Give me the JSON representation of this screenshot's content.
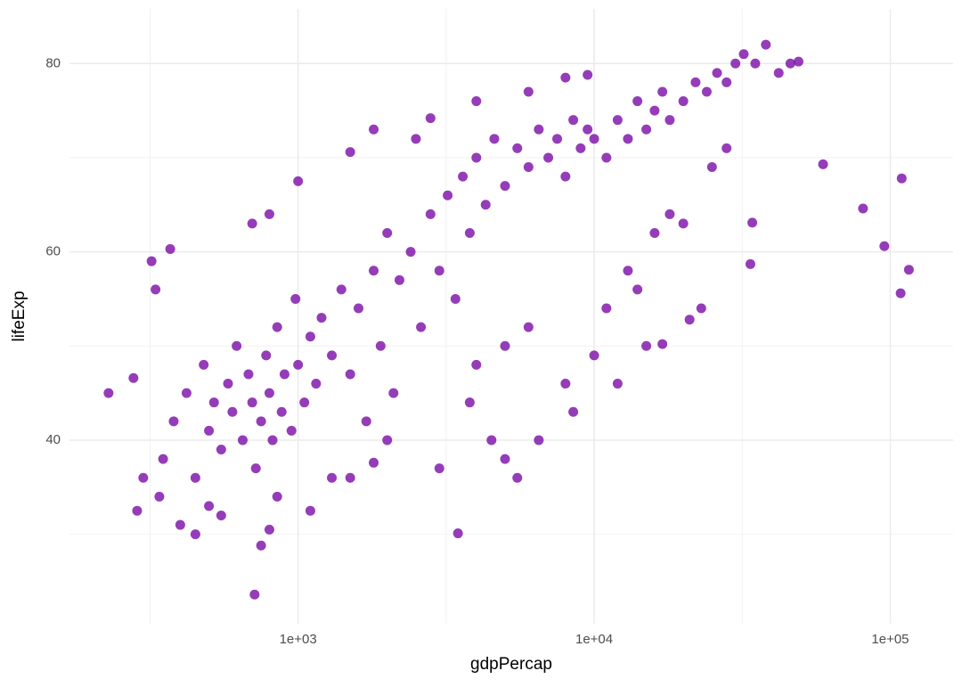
{
  "chart_data": {
    "type": "scatter",
    "x_label": "gdpPercap",
    "y_label": "lifeExp",
    "x": [
      350,
      380,
      420,
      450,
      480,
      500,
      520,
      550,
      580,
      600,
      620,
      650,
      680,
      700,
      720,
      750,
      780,
      800,
      820,
      850,
      880,
      900,
      950,
      980,
      1000,
      1050,
      1100,
      1150,
      1200,
      1300,
      1400,
      1500,
      1600,
      1700,
      1800,
      1900,
      2000,
      2100,
      2200,
      2400,
      2600,
      2800,
      3000,
      3200,
      3400,
      3600,
      3800,
      4000,
      4300,
      4600,
      5000,
      5500,
      6000,
      6500,
      7000,
      7500,
      8000,
      8500,
      9000,
      9500,
      10000,
      11000,
      12000,
      13000,
      14000,
      15000,
      16000,
      17000,
      18000,
      20000,
      22000,
      24000,
      26000,
      28000,
      30000,
      32000,
      35000,
      38000,
      42000,
      46000,
      49000,
      320,
      370,
      330,
      700,
      800,
      1000,
      1500,
      1800,
      2500,
      2800,
      4000,
      6000,
      8000,
      9500,
      1500,
      2000,
      3000,
      3800,
      4500,
      5000,
      5500,
      6500,
      4000,
      5000,
      6000,
      8000,
      8500,
      10000,
      11000,
      12000,
      13000,
      14000,
      16000,
      18000,
      20000,
      25000,
      28000,
      300,
      340,
      400,
      450,
      500,
      550,
      800,
      850,
      1100,
      750,
      1300,
      1800,
      115600,
      108400,
      109300,
      95500,
      80900,
      59300,
      34200,
      33700,
      21000,
      23000,
      15000,
      17000,
      713,
      229,
      278,
      286,
      3467
    ],
    "y": [
      38,
      42,
      45,
      36,
      48,
      41,
      44,
      39,
      46,
      43,
      50,
      40,
      47,
      44,
      37,
      42,
      49,
      45,
      40,
      52,
      43,
      47,
      41,
      55,
      48,
      44,
      51,
      46,
      53,
      49,
      56,
      47,
      54,
      42,
      58,
      50,
      62,
      45,
      57,
      60,
      52,
      64,
      58,
      66,
      55,
      68,
      62,
      70,
      65,
      72,
      67,
      71,
      69,
      73,
      70,
      72,
      68,
      74,
      71,
      73,
      72,
      70,
      74,
      72,
      76,
      73,
      75,
      77,
      74,
      76,
      78,
      77,
      79,
      78,
      80,
      81,
      80,
      82,
      79,
      80,
      80.2,
      59,
      60.3,
      56,
      63,
      64,
      67.5,
      70.6,
      73,
      72,
      74.2,
      76,
      77,
      78.5,
      78.8,
      36,
      40,
      37,
      44,
      40,
      38,
      36,
      40,
      48,
      50,
      52,
      46,
      43,
      49,
      54,
      46,
      58,
      56,
      62,
      64,
      63,
      69,
      71,
      36,
      34,
      31,
      30,
      33,
      32,
      30.5,
      34,
      32.5,
      28.8,
      36,
      37.6,
      58.1,
      55.6,
      67.8,
      60.6,
      64.6,
      69.3,
      63.1,
      58.7,
      52.8,
      54,
      50,
      50.2,
      23.6,
      45,
      46.6,
      32.5,
      30.1
    ],
    "color": "#7a0ba8",
    "log_x": true,
    "xlim": [
      169,
      163000
    ],
    "ylim": [
      20.5,
      85.8
    ],
    "xticks": [
      {
        "value": 1000,
        "label": "1e+03"
      },
      {
        "value": 10000,
        "label": "1e+04"
      },
      {
        "value": 100000,
        "label": "1e+05"
      }
    ],
    "xminor": [
      316.2,
      3162,
      31623
    ],
    "yticks": [
      40,
      60,
      80
    ],
    "yminor": [
      30,
      50,
      70
    ],
    "grid": true
  }
}
